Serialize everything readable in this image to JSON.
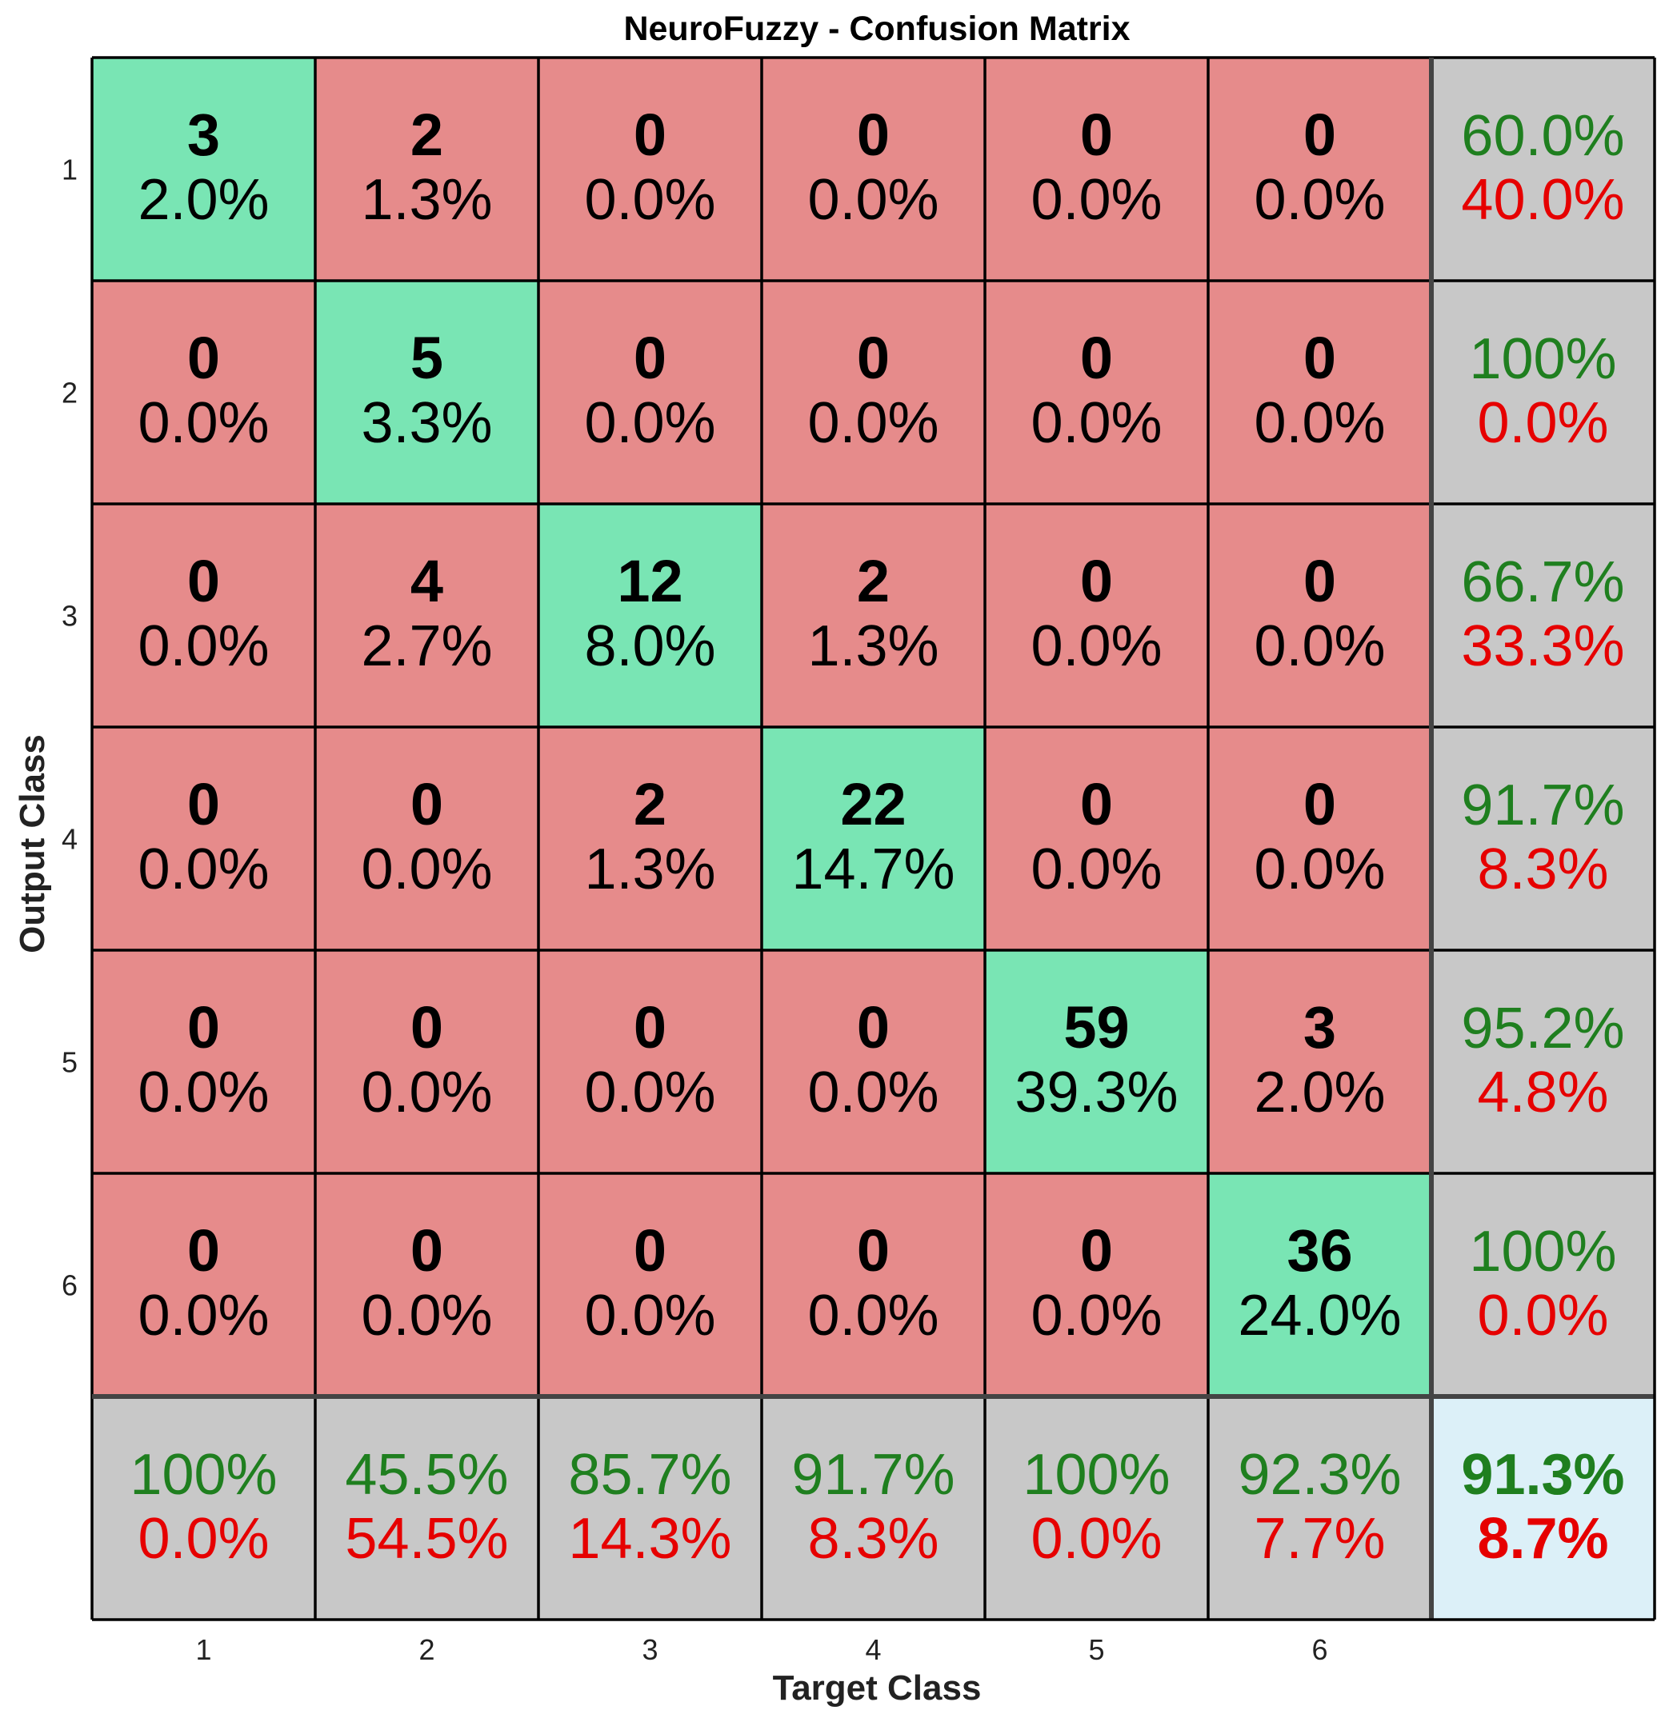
{
  "chart_data": {
    "type": "heatmap",
    "title": "NeuroFuzzy - Confusion Matrix",
    "xlabel": "Target Class",
    "ylabel": "Output Class",
    "x_ticks": [
      "1",
      "2",
      "3",
      "4",
      "5",
      "6"
    ],
    "y_ticks": [
      "1",
      "2",
      "3",
      "4",
      "5",
      "6"
    ],
    "matrix": [
      [
        3,
        2,
        0,
        0,
        0,
        0
      ],
      [
        0,
        5,
        0,
        0,
        0,
        0
      ],
      [
        0,
        4,
        12,
        2,
        0,
        0
      ],
      [
        0,
        0,
        2,
        22,
        0,
        0
      ],
      [
        0,
        0,
        0,
        0,
        59,
        3
      ],
      [
        0,
        0,
        0,
        0,
        0,
        36
      ]
    ],
    "matrix_percent": [
      [
        "2.0%",
        "1.3%",
        "0.0%",
        "0.0%",
        "0.0%",
        "0.0%"
      ],
      [
        "0.0%",
        "3.3%",
        "0.0%",
        "0.0%",
        "0.0%",
        "0.0%"
      ],
      [
        "0.0%",
        "2.7%",
        "8.0%",
        "1.3%",
        "0.0%",
        "0.0%"
      ],
      [
        "0.0%",
        "0.0%",
        "1.3%",
        "14.7%",
        "0.0%",
        "0.0%"
      ],
      [
        "0.0%",
        "0.0%",
        "0.0%",
        "0.0%",
        "39.3%",
        "2.0%"
      ],
      [
        "0.0%",
        "0.0%",
        "0.0%",
        "0.0%",
        "0.0%",
        "24.0%"
      ]
    ],
    "row_summary": [
      {
        "correct": "60.0%",
        "incorrect": "40.0%"
      },
      {
        "correct": "100%",
        "incorrect": "0.0%"
      },
      {
        "correct": "66.7%",
        "incorrect": "33.3%"
      },
      {
        "correct": "91.7%",
        "incorrect": "8.3%"
      },
      {
        "correct": "95.2%",
        "incorrect": "4.8%"
      },
      {
        "correct": "100%",
        "incorrect": "0.0%"
      }
    ],
    "column_summary": [
      {
        "correct": "100%",
        "incorrect": "0.0%"
      },
      {
        "correct": "45.5%",
        "incorrect": "54.5%"
      },
      {
        "correct": "85.7%",
        "incorrect": "14.3%"
      },
      {
        "correct": "91.7%",
        "incorrect": "8.3%"
      },
      {
        "correct": "100%",
        "incorrect": "0.0%"
      },
      {
        "correct": "92.3%",
        "incorrect": "7.7%"
      }
    ],
    "overall": {
      "correct": "91.3%",
      "incorrect": "8.7%"
    },
    "colors": {
      "diagonal": "#79e5b4",
      "off_diagonal": "#e68b8b",
      "summary": "#c8c8c8",
      "overall": "#dcf0f8",
      "correct_text": "#1f7f1f",
      "incorrect_text": "#e60000",
      "count_text": "#000000"
    }
  }
}
